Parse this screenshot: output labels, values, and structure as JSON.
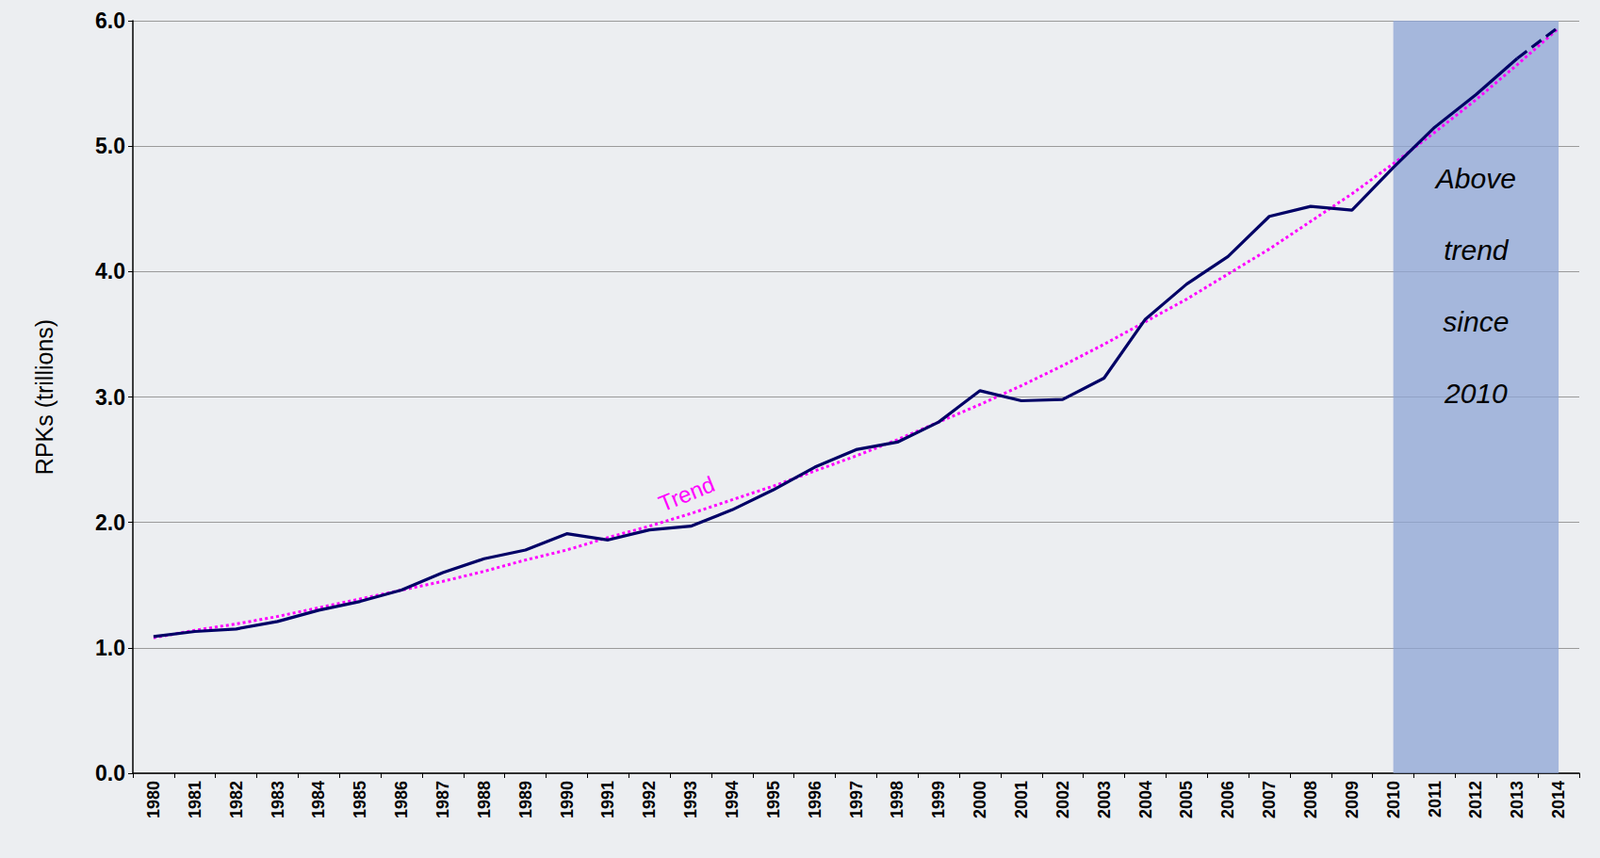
{
  "chart_data": {
    "type": "line",
    "y_label": "RPKs (trillions)",
    "categories": [
      "1980",
      "1981",
      "1982",
      "1983",
      "1984",
      "1985",
      "1986",
      "1987",
      "1988",
      "1989",
      "1990",
      "1991",
      "1992",
      "1993",
      "1994",
      "1995",
      "1996",
      "1997",
      "1998",
      "1999",
      "2000",
      "2001",
      "2002",
      "2003",
      "2004",
      "2005",
      "2006",
      "2007",
      "2008",
      "2009",
      "2010",
      "2011",
      "2012",
      "2013",
      "2014"
    ],
    "series": [
      {
        "color": "#000066",
        "line_style": "solid",
        "values": [
          1.09,
          1.13,
          1.15,
          1.21,
          1.3,
          1.37,
          1.46,
          1.6,
          1.71,
          1.78,
          1.91,
          1.86,
          1.94,
          1.97,
          2.1,
          2.26,
          2.44,
          2.58,
          2.64,
          2.8,
          3.05,
          2.97,
          2.98,
          3.15,
          3.62,
          3.9,
          4.12,
          4.44,
          4.52,
          4.49,
          4.83,
          5.15,
          5.41,
          5.7,
          null
        ]
      },
      {
        "color": "#000066",
        "line_style": "dashed",
        "values": [
          null,
          null,
          null,
          null,
          null,
          null,
          null,
          null,
          null,
          null,
          null,
          null,
          null,
          null,
          null,
          null,
          null,
          null,
          null,
          null,
          null,
          null,
          null,
          null,
          null,
          null,
          null,
          null,
          null,
          null,
          null,
          null,
          null,
          5.7,
          5.95
        ]
      },
      {
        "name": "Trend",
        "color": "#ff00ff",
        "line_style": "dotted",
        "values": [
          1.08,
          1.14,
          1.19,
          1.25,
          1.32,
          1.39,
          1.46,
          1.53,
          1.61,
          1.7,
          1.78,
          1.88,
          1.97,
          2.07,
          2.18,
          2.29,
          2.41,
          2.53,
          2.66,
          2.8,
          2.94,
          3.09,
          3.25,
          3.42,
          3.6,
          3.78,
          3.98,
          4.18,
          4.4,
          4.62,
          4.86,
          5.11,
          5.37,
          5.65,
          5.94
        ]
      }
    ],
    "annotations": [
      {
        "text": "Above trend since 2010",
        "x_from": "2010",
        "x_to": "2014",
        "color": "#8ea4d4"
      },
      {
        "text": "Trend",
        "x": "1993",
        "color": "#ff00ff"
      }
    ],
    "ylim": [
      0,
      6
    ],
    "yticks": [
      {
        "value": 0,
        "label": "0.0"
      },
      {
        "value": 1,
        "label": "1.0"
      },
      {
        "value": 2,
        "label": "2.0"
      },
      {
        "value": 3,
        "label": "3.0"
      },
      {
        "value": 4,
        "label": "4.0"
      },
      {
        "value": 5,
        "label": "5.0"
      },
      {
        "value": 6,
        "label": "6.0"
      }
    ],
    "grid": true
  }
}
